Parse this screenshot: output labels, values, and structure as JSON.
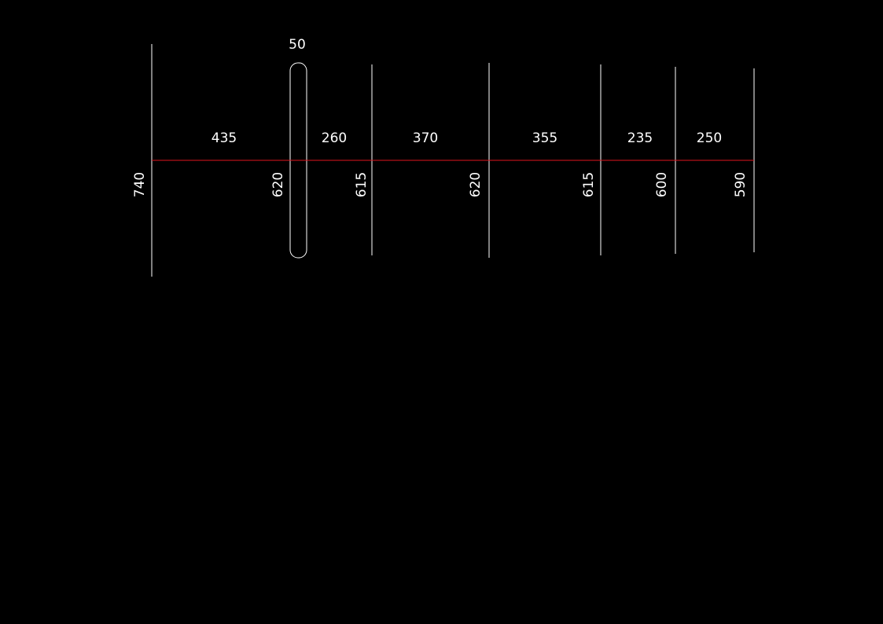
{
  "drawing": {
    "slot_width": 50,
    "spans": [
      435,
      260,
      370,
      355,
      235,
      250
    ],
    "heights": [
      740,
      620,
      615,
      620,
      615,
      600,
      590
    ]
  }
}
